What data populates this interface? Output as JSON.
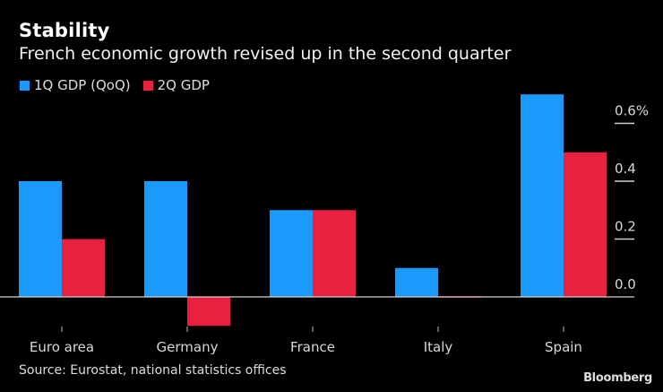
{
  "header": {
    "title": "Stability",
    "subtitle": "French economic growth revised up in the second quarter"
  },
  "footer": {
    "source": "Source: Eurostat, national statistics offices",
    "logo": "Bloomberg"
  },
  "chart_data": {
    "type": "bar",
    "title": "Stability",
    "subtitle": "French economic growth revised up in the second quarter",
    "xlabel": "",
    "ylabel": "",
    "categories": [
      "Euro area",
      "Germany",
      "France",
      "Italy",
      "Spain"
    ],
    "series": [
      {
        "name": "1Q GDP (QoQ)",
        "color": "#1a9bfc",
        "values": [
          0.4,
          0.4,
          0.3,
          0.1,
          0.7
        ]
      },
      {
        "name": "2Q GDP",
        "color": "#ea2040",
        "values": [
          0.2,
          -0.1,
          0.3,
          0.0,
          0.5
        ]
      }
    ],
    "ylim": [
      -0.1,
      0.7
    ],
    "yticks": [
      0.0,
      0.2,
      0.4,
      0.6
    ],
    "ytick_labels": [
      "0.0",
      "0.2",
      "0.4",
      "0.6%"
    ],
    "y_axis_position": "right",
    "legend_position": "top-left",
    "grid": false,
    "background": "#000000",
    "source": "Source: Eurostat, national statistics offices"
  }
}
